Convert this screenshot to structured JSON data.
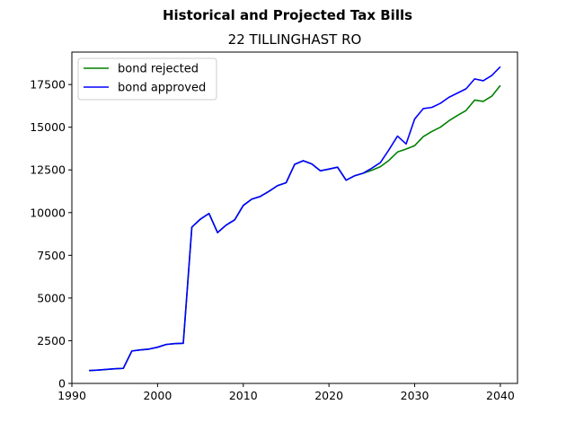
{
  "chart_data": {
    "type": "line",
    "suptitle": "Historical and Projected Tax Bills",
    "title": "22 TILLINGHAST RO",
    "xlabel": "",
    "ylabel": "",
    "xlim": [
      1990,
      2042
    ],
    "ylim": [
      0,
      19400
    ],
    "xticks": [
      1990,
      2000,
      2010,
      2020,
      2030,
      2040
    ],
    "yticks": [
      0,
      2500,
      5000,
      7500,
      10000,
      12500,
      15000,
      17500
    ],
    "grid": false,
    "legend_position": "top-left",
    "series": [
      {
        "name": "bond rejected",
        "color": "#008000",
        "x": [
          1992,
          1993,
          1994,
          1995,
          1996,
          1997,
          1998,
          1999,
          2000,
          2001,
          2002,
          2003,
          2004,
          2005,
          2006,
          2007,
          2008,
          2009,
          2010,
          2011,
          2012,
          2013,
          2014,
          2015,
          2016,
          2017,
          2018,
          2019,
          2020,
          2021,
          2022,
          2023,
          2024,
          2025,
          2026,
          2027,
          2028,
          2029,
          2030,
          2031,
          2032,
          2033,
          2034,
          2035,
          2036,
          2037,
          2038,
          2039,
          2040
        ],
        "y": [
          750,
          780,
          820,
          860,
          880,
          1900,
          1960,
          2010,
          2120,
          2280,
          2330,
          2350,
          9150,
          9620,
          9950,
          8830,
          9270,
          9580,
          10420,
          10790,
          10950,
          11250,
          11580,
          11750,
          12830,
          13040,
          12850,
          12450,
          12550,
          12660,
          11900,
          12160,
          12310,
          12480,
          12690,
          13060,
          13550,
          13720,
          13920,
          14450,
          14750,
          15000,
          15380,
          15690,
          15980,
          16590,
          16510,
          16820,
          17450
        ]
      },
      {
        "name": "bond approved",
        "color": "#0000ff",
        "x": [
          1992,
          1993,
          1994,
          1995,
          1996,
          1997,
          1998,
          1999,
          2000,
          2001,
          2002,
          2003,
          2004,
          2005,
          2006,
          2007,
          2008,
          2009,
          2010,
          2011,
          2012,
          2013,
          2014,
          2015,
          2016,
          2017,
          2018,
          2019,
          2020,
          2021,
          2022,
          2023,
          2024,
          2025,
          2026,
          2027,
          2028,
          2029,
          2030,
          2031,
          2032,
          2033,
          2034,
          2035,
          2036,
          2037,
          2038,
          2039,
          2040
        ],
        "y": [
          750,
          780,
          820,
          860,
          880,
          1900,
          1960,
          2010,
          2120,
          2280,
          2330,
          2350,
          9150,
          9620,
          9950,
          8830,
          9270,
          9580,
          10420,
          10790,
          10950,
          11250,
          11580,
          11750,
          12830,
          13040,
          12850,
          12450,
          12550,
          12660,
          11900,
          12160,
          12310,
          12600,
          12930,
          13680,
          14480,
          14020,
          15480,
          16090,
          16160,
          16400,
          16750,
          17000,
          17250,
          17830,
          17720,
          18030,
          18540
        ]
      }
    ]
  }
}
